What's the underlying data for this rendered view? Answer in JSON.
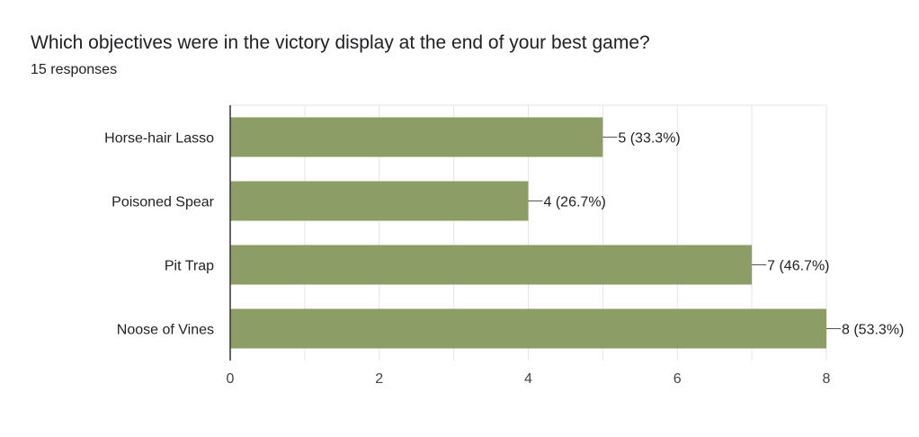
{
  "question": {
    "title": "Which objectives were in the victory display at the end of your best game?",
    "responses": "15 responses"
  },
  "colors": {
    "bar": "#8c9e65",
    "grid": "#e6e6e6",
    "axis": "#333333"
  },
  "chart_data": {
    "type": "bar",
    "orientation": "horizontal",
    "categories": [
      "Horse-hair Lasso",
      "Poisoned Spear",
      "Pit Trap",
      "Noose of Vines"
    ],
    "values": [
      5,
      4,
      7,
      8
    ],
    "value_labels": [
      "5 (33.3%)",
      "4 (26.7%)",
      "7 (46.7%)",
      "8 (53.3%)"
    ],
    "x_ticks": [
      "0",
      "2",
      "4",
      "6",
      "8"
    ],
    "xlim": [
      0,
      8
    ],
    "grid": true
  }
}
